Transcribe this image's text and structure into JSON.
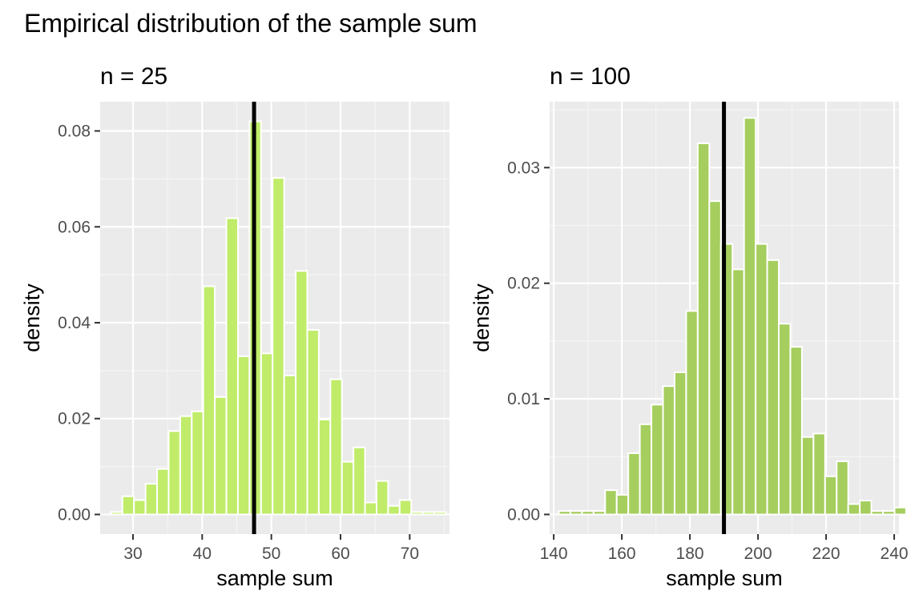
{
  "figure_title": "Empirical distribution of the sample sum",
  "colors": {
    "panel_bg": "#EBEBEB",
    "grid_major": "#FFFFFF",
    "grid_minor": "#F5F5F5",
    "bar_outline": "#FFFFFF",
    "reference_line": "#000000",
    "tick_text": "#4D4D4D",
    "axis_title": "#000000"
  },
  "chart_data": [
    {
      "type": "bar",
      "subtitle": "n = 25",
      "xlabel": "sample sum",
      "ylabel": "density",
      "bar_color": "#C0EC6A",
      "xlim": [
        25.25,
        75.75
      ],
      "ylim": [
        -0.0041,
        0.0861
      ],
      "x_ticks": [
        30,
        40,
        50,
        60,
        70
      ],
      "x_tick_labels": [
        "30",
        "40",
        "50",
        "60",
        "70"
      ],
      "y_ticks": [
        0,
        0.02,
        0.04,
        0.06,
        0.08
      ],
      "y_tick_labels": [
        "0.00",
        "0.02",
        "0.04",
        "0.06",
        "0.08"
      ],
      "bin_width": 1.67,
      "bin_start": 26.8,
      "values": [
        0.0005,
        0.0038,
        0.003,
        0.0064,
        0.0095,
        0.0174,
        0.0205,
        0.0215,
        0.0476,
        0.0245,
        0.0618,
        0.033,
        0.082,
        0.0336,
        0.0702,
        0.029,
        0.0508,
        0.0385,
        0.0198,
        0.0282,
        0.011,
        0.014,
        0.0025,
        0.007,
        0.0018,
        0.003,
        0.0005,
        0.0005,
        0.0005
      ],
      "reference_line": 47.5,
      "grid": true
    },
    {
      "type": "bar",
      "subtitle": "n = 100",
      "xlabel": "sample sum",
      "ylabel": "density",
      "bar_color": "#A5CE5E",
      "xlim": [
        138.8,
        241.4
      ],
      "ylim": [
        -0.0017,
        0.0357
      ],
      "x_ticks": [
        140,
        160,
        180,
        200,
        220,
        240
      ],
      "x_tick_labels": [
        "140",
        "160",
        "180",
        "200",
        "220",
        "240"
      ],
      "y_ticks": [
        0,
        0.01,
        0.02,
        0.03
      ],
      "y_tick_labels": [
        "0.00",
        "0.01",
        "0.02",
        "0.03"
      ],
      "bin_width": 3.4,
      "bin_start": 141.5,
      "values": [
        0.0003,
        0.0003,
        0.0003,
        0.0003,
        0.0021,
        0.0017,
        0.0053,
        0.0078,
        0.0095,
        0.0111,
        0.0123,
        0.0176,
        0.0321,
        0.0271,
        0.0234,
        0.0212,
        0.0343,
        0.0234,
        0.022,
        0.0165,
        0.0145,
        0.0067,
        0.007,
        0.0033,
        0.0046,
        0.0009,
        0.0012,
        0.0003,
        0.0003,
        0.0006
      ],
      "reference_line": 190.0,
      "grid": true
    }
  ]
}
